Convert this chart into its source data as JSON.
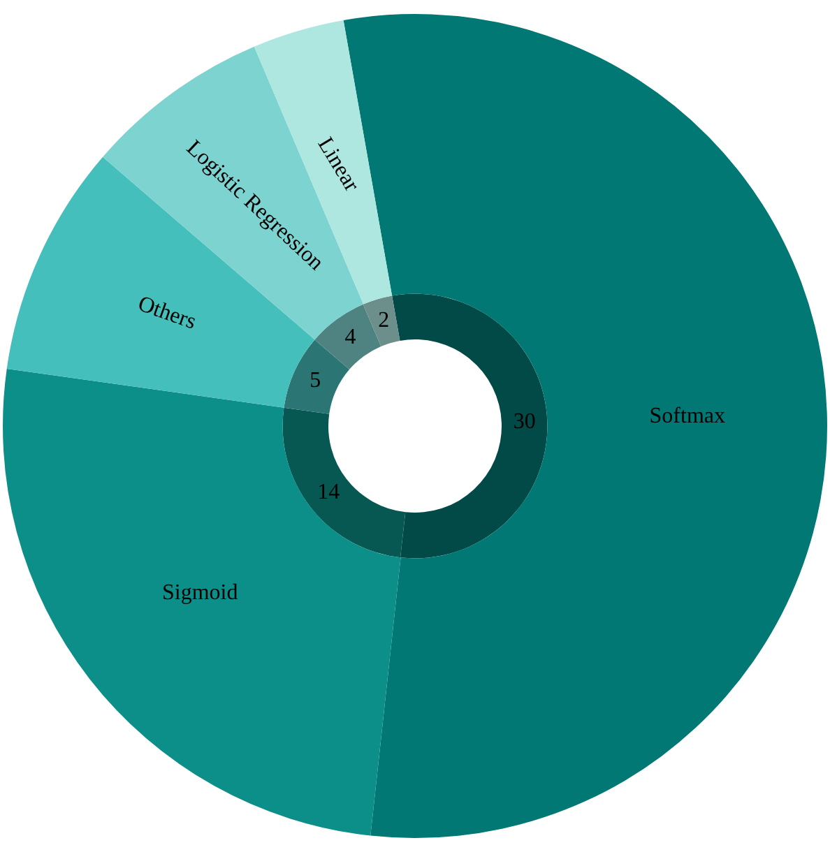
{
  "chart_data": {
    "type": "donut",
    "categories": [
      "Softmax",
      "Sigmoid",
      "Others",
      "Logistic Regression",
      "Linear"
    ],
    "series": [
      {
        "values": [
          54.5,
          25.5,
          9.1,
          7.3,
          3.6
        ],
        "colors": [
          "#017873",
          "#0b8f88",
          "#45bfbb",
          "#7dd3d0",
          "#aee6e0"
        ]
      },
      {
        "values": [
          30,
          14,
          5,
          4,
          2
        ],
        "value_labels": [
          "30",
          "14",
          "5",
          "4",
          "2"
        ],
        "colors": [
          "#014a47",
          "#075853",
          "#2b7674",
          "#4e8381",
          "#6c8f8b"
        ]
      }
    ],
    "legend": false
  }
}
